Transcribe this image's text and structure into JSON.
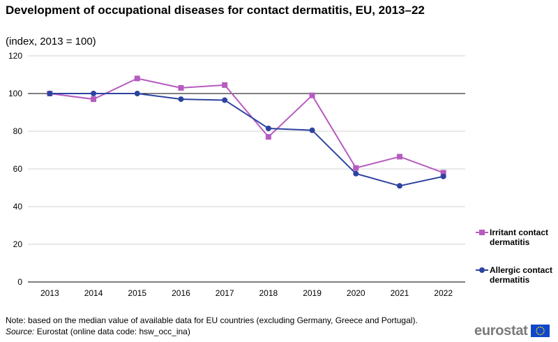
{
  "title": "Development of occupational diseases for contact dermatitis, EU, 2013–22",
  "subtitle": "(index, 2013 = 100)",
  "chart_data": {
    "type": "line",
    "title": "Development of occupational diseases for contact dermatitis, EU, 2013–22",
    "subtitle": "(index, 2013 = 100)",
    "xlabel": "",
    "ylabel": "",
    "categories": [
      "2013",
      "2014",
      "2015",
      "2016",
      "2017",
      "2018",
      "2019",
      "2020",
      "2021",
      "2022"
    ],
    "ylim": [
      0,
      120
    ],
    "yticks": [
      0,
      20,
      40,
      60,
      80,
      100,
      120
    ],
    "grid": true,
    "legend_position": "right",
    "series": [
      {
        "name": "Irritant contact dermatitis",
        "color": "#b65cbf",
        "marker": "square",
        "values": [
          100,
          97,
          108,
          103,
          104.5,
          77,
          99,
          60.5,
          66.5,
          58
        ]
      },
      {
        "name": "Allergic contact dermatitis",
        "color": "#2d43a0",
        "marker": "circle",
        "values": [
          100,
          100,
          100,
          97,
          96.5,
          81.5,
          80.5,
          57.5,
          51,
          56
        ]
      }
    ]
  },
  "legend": {
    "irritant": "Irritant contact dermatitis",
    "allergic": "Allergic contact dermatitis"
  },
  "note": "Note: based on the median value of available data for EU countries (excluding Germany, Greece and Portugal).",
  "source_label": "Source:",
  "source_text": " Eurostat (online data code: hsw_occ_ina)",
  "logo": {
    "text": "eurostat",
    "flag_color": "#0e47cb",
    "star_color": "#ffe500"
  }
}
